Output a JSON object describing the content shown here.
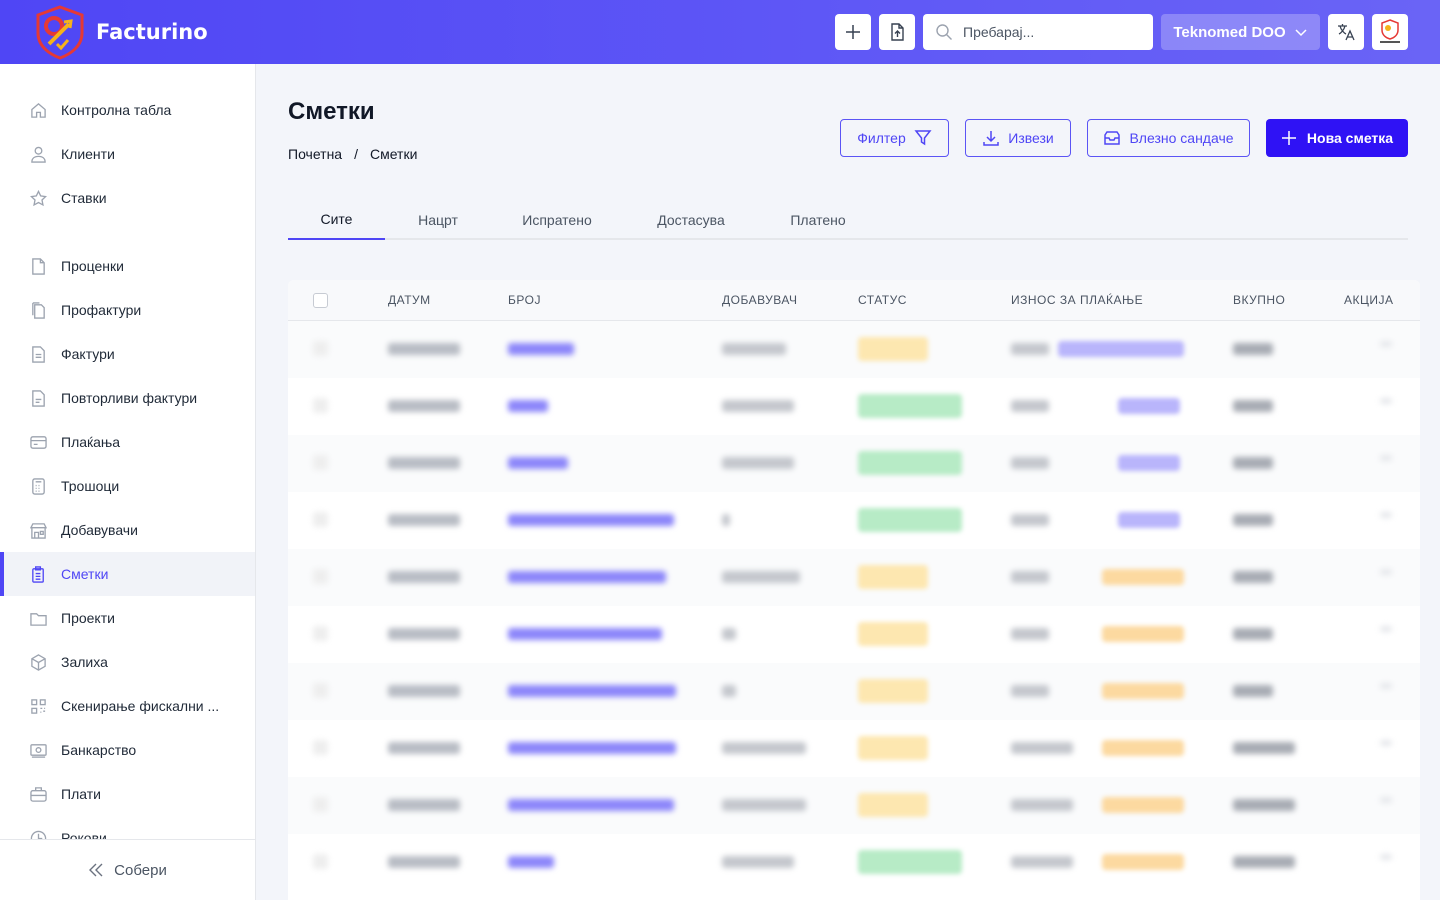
{
  "app": {
    "brand": "Facturino",
    "accent": "#4f46f5",
    "primary": "#2f12f5"
  },
  "topbar": {
    "search_placeholder": "Пребарај...",
    "company": "Teknomed DOO",
    "icons": [
      "plus-icon",
      "file-upload-icon",
      "search-icon",
      "chevron-down-icon",
      "translate-icon",
      "avatar-logo"
    ]
  },
  "sidebar": {
    "items": [
      {
        "label": "Контролна табла",
        "icon": "home-icon"
      },
      {
        "label": "Клиенти",
        "icon": "user-icon"
      },
      {
        "label": "Ставки",
        "icon": "star-icon"
      },
      {
        "label": "Проценки",
        "icon": "document-icon"
      },
      {
        "label": "Профактури",
        "icon": "documents-icon"
      },
      {
        "label": "Фактури",
        "icon": "invoice-icon"
      },
      {
        "label": "Повторливи фактури",
        "icon": "recurring-invoice-icon"
      },
      {
        "label": "Плаќања",
        "icon": "credit-card-icon"
      },
      {
        "label": "Трошоци",
        "icon": "calculator-icon"
      },
      {
        "label": "Добавувачи",
        "icon": "store-icon"
      },
      {
        "label": "Сметки",
        "icon": "clipboard-icon",
        "active": true
      },
      {
        "label": "Проекти",
        "icon": "folder-icon"
      },
      {
        "label": "Залиха",
        "icon": "cube-icon"
      },
      {
        "label": "Скенирање фискални ...",
        "icon": "qr-icon"
      },
      {
        "label": "Банкарство",
        "icon": "banknote-icon"
      },
      {
        "label": "Плати",
        "icon": "briefcase-icon"
      },
      {
        "label": "Рокови",
        "icon": "clock-icon"
      }
    ],
    "collapse": "Собери"
  },
  "page": {
    "title": "Сметки",
    "breadcrumb": [
      "Почетна",
      "Сметки"
    ],
    "buttons": {
      "filter": "Филтер",
      "export": "Извези",
      "inbox": "Влезно сандаче",
      "new": "Нова сметка"
    },
    "tabs": [
      "Сите",
      "Нацрт",
      "Испратено",
      "Достасува",
      "Платено"
    ],
    "active_tab": "Сите"
  },
  "table": {
    "columns": [
      "ДАТУМ",
      "БРОЈ",
      "ДОБАВУВАЧ",
      "СТАТУС",
      "ИЗНОС ЗА ПЛАЌАЊЕ",
      "ВКУПНО",
      "АКЦИЈА"
    ],
    "status_colors": {
      "unpaid": "#fde7b0",
      "completed": "#b7ebc6"
    },
    "due_colors": {
      "blue": "#b9b5fb",
      "orange": "#fcd9a0"
    },
    "rows": [
      {
        "status": "unpaid",
        "due": "blue"
      },
      {
        "status": "completed",
        "due": "blue"
      },
      {
        "status": "completed",
        "due": "blue"
      },
      {
        "status": "completed",
        "due": "blue"
      },
      {
        "status": "unpaid",
        "due": "orange"
      },
      {
        "status": "unpaid",
        "due": "orange"
      },
      {
        "status": "unpaid",
        "due": "orange"
      },
      {
        "status": "unpaid",
        "due": "orange"
      },
      {
        "status": "unpaid",
        "due": "orange"
      },
      {
        "status": "completed",
        "due": "orange"
      }
    ]
  }
}
